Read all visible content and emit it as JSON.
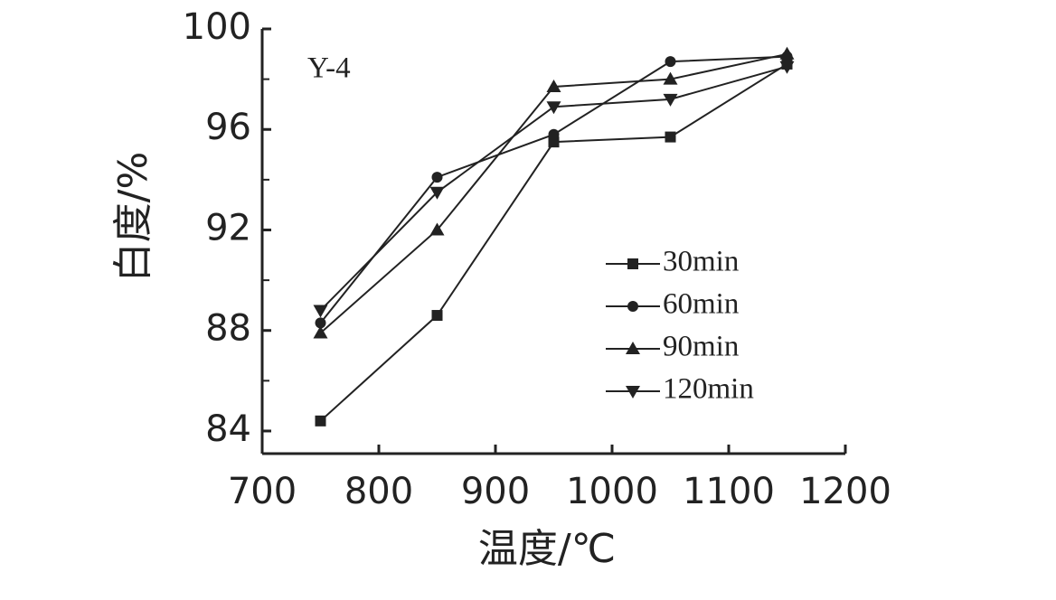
{
  "chart_data": {
    "type": "line",
    "annotation": "Y-4",
    "xlabel": "温度/℃",
    "ylabel": "白度/%",
    "x": [
      750,
      850,
      950,
      1050,
      1150
    ],
    "xlim": [
      700,
      1200
    ],
    "xticks": [
      700,
      800,
      900,
      1000,
      1100,
      1200
    ],
    "ylim": [
      83.1,
      100
    ],
    "yticks": [
      84,
      88,
      92,
      96,
      100
    ],
    "minor_yticks": [
      86,
      90,
      94,
      98
    ],
    "series": [
      {
        "name": "30min",
        "color": "#222222",
        "marker": "square",
        "values": [
          84.4,
          88.6,
          95.5,
          95.7,
          98.6
        ]
      },
      {
        "name": "60min",
        "color": "#222222",
        "marker": "circle",
        "values": [
          88.3,
          94.1,
          95.8,
          98.7,
          98.9
        ]
      },
      {
        "name": "90min",
        "color": "#222222",
        "marker": "triangle-up",
        "values": [
          87.9,
          92.0,
          97.7,
          98.0,
          99.0
        ]
      },
      {
        "name": "120min",
        "color": "#222222",
        "marker": "triangle-down",
        "values": [
          88.8,
          93.5,
          96.9,
          97.2,
          98.5
        ]
      }
    ]
  }
}
